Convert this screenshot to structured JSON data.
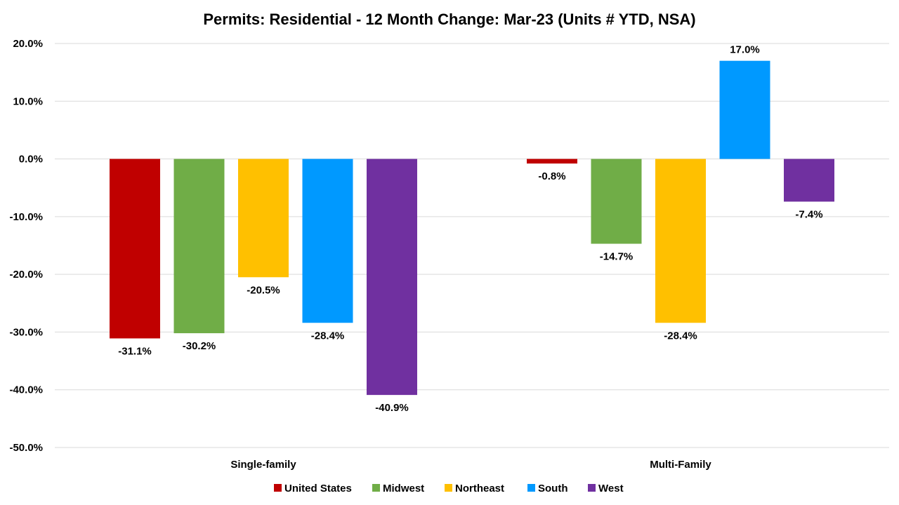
{
  "chart_data": {
    "type": "bar",
    "title": "Permits: Residential - 12 Month Change:  Mar-23 (Units # YTD, NSA)",
    "categories": [
      "Single-family",
      "Multi-Family"
    ],
    "series": [
      {
        "name": "United States",
        "color": "#c00000",
        "values": [
          -31.1,
          -0.8
        ]
      },
      {
        "name": "Midwest",
        "color": "#70ad47",
        "values": [
          -30.2,
          -14.7
        ]
      },
      {
        "name": "Northeast",
        "color": "#ffc000",
        "values": [
          -20.5,
          -28.4
        ]
      },
      {
        "name": "South",
        "color": "#0099ff",
        "values": [
          -28.4,
          17.0
        ]
      },
      {
        "name": "West",
        "color": "#7030a0",
        "values": [
          -40.9,
          -7.4
        ]
      }
    ],
    "data_labels": [
      [
        "-31.1%",
        "-0.8%"
      ],
      [
        "-30.2%",
        "-14.7%"
      ],
      [
        "-20.5%",
        "-28.4%"
      ],
      [
        "-28.4%",
        "17.0%"
      ],
      [
        "-40.9%",
        "-7.4%"
      ]
    ],
    "ylim": [
      -50,
      20
    ],
    "yticks": [
      20,
      10,
      0,
      -10,
      -20,
      -30,
      -40,
      -50
    ],
    "ytick_labels": [
      "20.0%",
      "10.0%",
      "0.0%",
      "-10.0%",
      "-20.0%",
      "-30.0%",
      "-40.0%",
      "-50.0%"
    ],
    "grid": true,
    "legend_position": "bottom"
  }
}
